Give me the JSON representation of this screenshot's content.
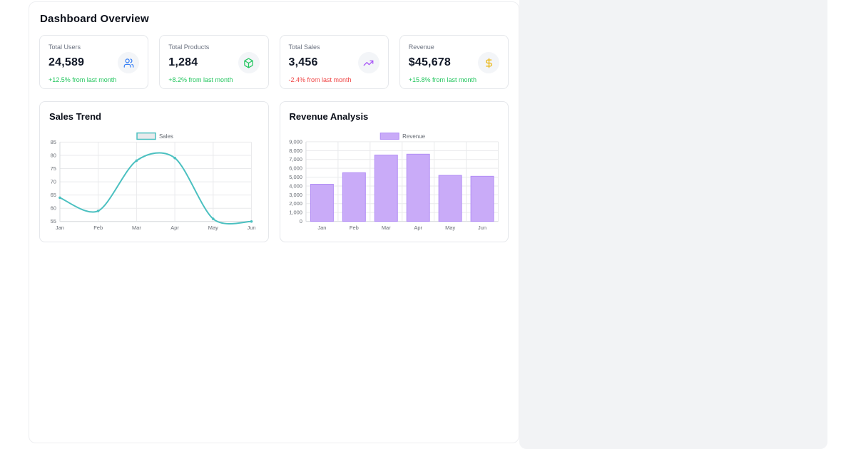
{
  "header": {
    "title": "Dashboard Overview"
  },
  "stats": [
    {
      "label": "Total Users",
      "value": "24,589",
      "delta": "+12.5% from last month",
      "delta_color": "#22c55e",
      "icon": "users-icon",
      "icon_color": "#3b82f6"
    },
    {
      "label": "Total Products",
      "value": "1,284",
      "delta": "+8.2% from last month",
      "delta_color": "#22c55e",
      "icon": "package-icon",
      "icon_color": "#22c55e"
    },
    {
      "label": "Total Sales",
      "value": "3,456",
      "delta": "-2.4% from last month",
      "delta_color": "#ef4444",
      "icon": "trending-up-icon",
      "icon_color": "#a855f7"
    },
    {
      "label": "Revenue",
      "value": "$45,678",
      "delta": "+15.8% from last month",
      "delta_color": "#22c55e",
      "icon": "dollar-sign-icon",
      "icon_color": "#eab308"
    }
  ],
  "chart_data": [
    {
      "type": "line",
      "title": "Sales Trend",
      "categories": [
        "Jan",
        "Feb",
        "Mar",
        "Apr",
        "May",
        "Jun"
      ],
      "series": [
        {
          "name": "Sales",
          "values": [
            64,
            59,
            78,
            79,
            56,
            55
          ]
        }
      ],
      "ylim": [
        55,
        85
      ],
      "ytick_step": 5,
      "grid": true,
      "legend_position": "top",
      "line_color": "#4bc0c0",
      "legend_fill": "#e8eaec"
    },
    {
      "type": "bar",
      "title": "Revenue Analysis",
      "categories": [
        "Jan",
        "Feb",
        "Mar",
        "Apr",
        "May",
        "Jun"
      ],
      "series": [
        {
          "name": "Revenue",
          "values": [
            4200,
            5500,
            7500,
            7600,
            5200,
            5100
          ]
        }
      ],
      "ylim": [
        0,
        9000
      ],
      "ytick_step": 1000,
      "grid": true,
      "legend_position": "top",
      "bar_fill": "#c9abf8",
      "bar_border": "#b28df5"
    }
  ],
  "theme": {
    "page_bg": "#ffffff",
    "side_panel_bg": "#f2f3f5",
    "card_border": "#e5e7eb",
    "text_primary": "#111827",
    "text_muted": "#6b7280",
    "tick_color": "#686d74",
    "grid_color": "#e9eaec",
    "axis_border": "#d9dcdf",
    "positive": "#22c55e",
    "negative": "#ef4444"
  }
}
